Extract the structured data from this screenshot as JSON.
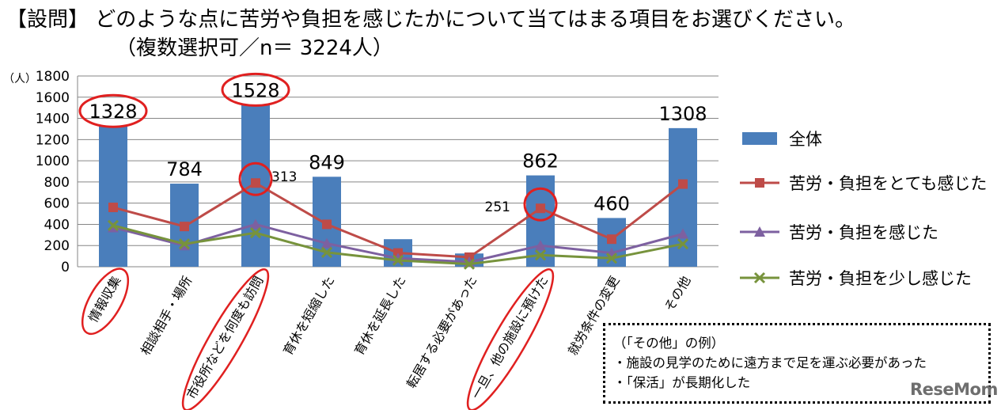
{
  "question": {
    "line1": "【設問】 どのような点に苦労や負担を感じたかについて当てはまる項目をお選びください。",
    "line2": "（複数選択可／n＝ 3224人）"
  },
  "chart_data": {
    "type": "bar",
    "unit_label": "（人）",
    "ylim": [
      0,
      1800
    ],
    "yticks": [
      0,
      200,
      400,
      600,
      800,
      1000,
      1200,
      1400,
      1600,
      1800
    ],
    "categories": [
      "情報収集",
      "相談相手・場所",
      "市役所などを何度も訪問",
      "育休を短縮した",
      "育休を延長した",
      "転居する必要があった",
      "一旦、他の施設に預けた",
      "就労条件の変更",
      "その他"
    ],
    "series": [
      {
        "name": "全体",
        "type": "bar",
        "color": "#4a7ebb",
        "values": [
          1328,
          784,
          1528,
          849,
          260,
          125,
          862,
          460,
          1308
        ]
      },
      {
        "name": "苦労・負担をとても感じた",
        "type": "line",
        "marker": "square",
        "color": "#be4b48",
        "values": [
          560,
          380,
          790,
          400,
          130,
          90,
          551,
          260,
          780
        ]
      },
      {
        "name": "苦労・負担を感じた",
        "type": "line",
        "marker": "triangle",
        "color": "#7d60a0",
        "values": [
          370,
          200,
          400,
          220,
          80,
          45,
          200,
          130,
          310
        ]
      },
      {
        "name": "苦労・負担を少し感じた",
        "type": "line",
        "marker": "x",
        "color": "#77933c",
        "values": [
          390,
          215,
          320,
          135,
          60,
          25,
          110,
          80,
          215
        ]
      }
    ],
    "bar_labels": [
      "1328",
      "784",
      "1528",
      "849",
      "",
      "",
      "862",
      "460",
      "1308"
    ],
    "point_labels": [
      {
        "index": 2,
        "text": "313"
      },
      {
        "index": 6,
        "text": "251"
      }
    ],
    "highlighted_bars": [
      0,
      2
    ],
    "highlighted_points": [
      2,
      6
    ],
    "highlighted_categories": [
      0,
      2,
      6
    ],
    "grid": true,
    "legend_position": "right"
  },
  "note": {
    "title": "（「その他」の例）",
    "items": [
      "・施設の見学のために遠方まで足を運ぶ必要があった",
      "・「保活」が長期化した"
    ]
  },
  "watermark": "ReseMom"
}
